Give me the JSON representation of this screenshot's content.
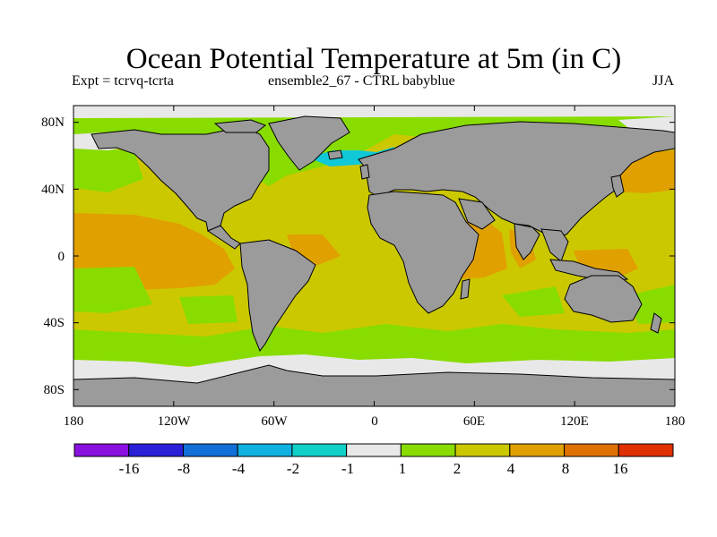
{
  "title": "Ocean Potential Temperature at 5m (in C)",
  "subtitle_left": "Expt = tcrvq-tcrta",
  "subtitle_center": "ensemble2_67 - CTRL babyblue",
  "subtitle_right": "JJA",
  "axes": {
    "lat_ticks": [
      {
        "value": 80,
        "label": "80N"
      },
      {
        "value": 40,
        "label": "40N"
      },
      {
        "value": 0,
        "label": "0"
      },
      {
        "value": -40,
        "label": "40S"
      },
      {
        "value": -80,
        "label": "80S"
      }
    ],
    "lon_ticks": [
      {
        "value": -180,
        "label": "180"
      },
      {
        "value": -120,
        "label": "120W"
      },
      {
        "value": -60,
        "label": "60W"
      },
      {
        "value": 0,
        "label": "0"
      },
      {
        "value": 60,
        "label": "60E"
      },
      {
        "value": 120,
        "label": "120E"
      },
      {
        "value": 180,
        "label": "180"
      }
    ],
    "lon_range": [
      -180,
      180
    ],
    "lat_range": [
      -90,
      90
    ]
  },
  "colorbar": {
    "colors": [
      "#8a10e0",
      "#2a20d8",
      "#1070d8",
      "#10b0e0",
      "#10d0c8",
      "#e8e8e8",
      "#88dc00",
      "#ccc800",
      "#e0a000",
      "#e07000",
      "#e03000"
    ],
    "labels": [
      "-16",
      "-8",
      "-4",
      "-2",
      "-1",
      "1",
      "2",
      "4",
      "8",
      "16"
    ]
  },
  "colors": {
    "land": "#9b9b9b",
    "coast": "#000000",
    "band_0_1": "#e8e8e8",
    "band_1_2": "#88dc00",
    "band_2_4": "#ccc800",
    "band_4_8": "#e0a000",
    "band_neg": "#10c8d8"
  }
}
